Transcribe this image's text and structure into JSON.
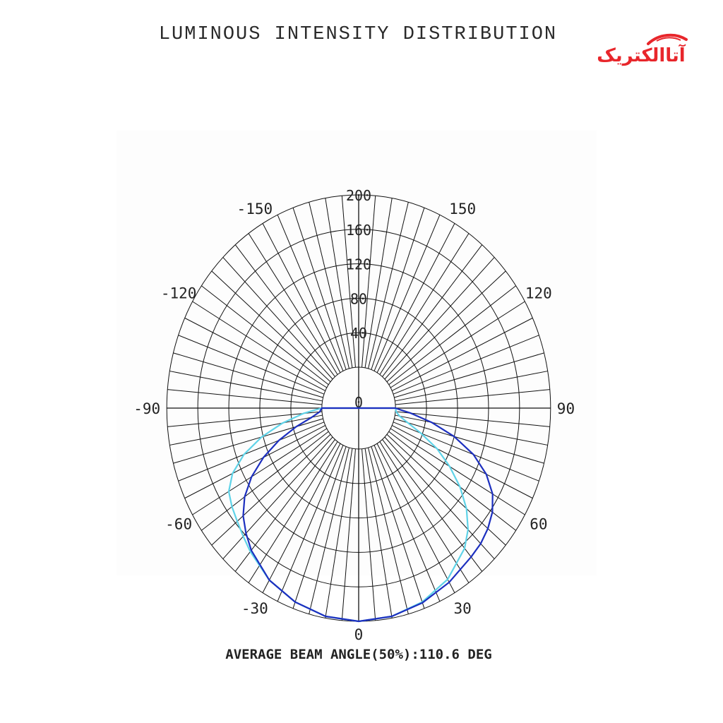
{
  "title": "LUMINOUS INTENSITY DISTRIBUTION",
  "logo": {
    "text": "آتاالکتریک",
    "color": "#e8262b"
  },
  "footer": "AVERAGE BEAM ANGLE(50%):110.6 DEG",
  "chart_data": {
    "type": "polar",
    "radial_ticks": [
      0,
      40,
      80,
      120,
      160,
      200
    ],
    "radial_tick_labels": [
      "0",
      "40",
      "80",
      "120",
      "160",
      "200"
    ],
    "angle_labels": [
      {
        "angle": -150,
        "text": "-150"
      },
      {
        "angle": 150,
        "text": "150"
      },
      {
        "angle": -120,
        "text": "-120"
      },
      {
        "angle": 120,
        "text": "120"
      },
      {
        "angle": -90,
        "text": "-90"
      },
      {
        "angle": 90,
        "text": "90"
      },
      {
        "angle": -60,
        "text": "-60"
      },
      {
        "angle": 60,
        "text": "60"
      },
      {
        "angle": -30,
        "text": "-30"
      },
      {
        "angle": 30,
        "text": "30"
      },
      {
        "angle": 0,
        "text": "0"
      }
    ],
    "rlim": [
      0,
      200
    ],
    "angle_step_deg": 5,
    "grid": true,
    "series": [
      {
        "color": "#5fd3e8",
        "points": [
          [
            0,
            200
          ],
          [
            10,
            198
          ],
          [
            20,
            192
          ],
          [
            30,
            182
          ],
          [
            40,
            165
          ],
          [
            45,
            152
          ],
          [
            50,
            134
          ],
          [
            55,
            112
          ],
          [
            60,
            88
          ],
          [
            65,
            64
          ],
          [
            70,
            38
          ],
          [
            75,
            18
          ],
          [
            80,
            6
          ],
          [
            85,
            1
          ],
          [
            90,
            0
          ],
          [
            -10,
            198
          ],
          [
            -20,
            192
          ],
          [
            -30,
            183
          ],
          [
            -40,
            170
          ],
          [
            -45,
            163
          ],
          [
            -50,
            157
          ],
          [
            -55,
            152
          ],
          [
            -60,
            146
          ],
          [
            -65,
            132
          ],
          [
            -70,
            110
          ],
          [
            -75,
            82
          ],
          [
            -80,
            52
          ],
          [
            -85,
            24
          ],
          [
            -88,
            8
          ],
          [
            -90,
            0
          ]
        ]
      },
      {
        "color": "#1c2fbf",
        "points": [
          [
            0,
            200
          ],
          [
            10,
            198
          ],
          [
            20,
            193
          ],
          [
            30,
            186
          ],
          [
            40,
            178
          ],
          [
            45,
            175
          ],
          [
            50,
            170
          ],
          [
            55,
            163
          ],
          [
            60,
            152
          ],
          [
            65,
            134
          ],
          [
            70,
            110
          ],
          [
            75,
            80
          ],
          [
            80,
            48
          ],
          [
            85,
            20
          ],
          [
            88,
            6
          ],
          [
            90,
            0
          ],
          [
            -10,
            198
          ],
          [
            -20,
            192
          ],
          [
            -30,
            183
          ],
          [
            -40,
            168
          ],
          [
            -45,
            158
          ],
          [
            -50,
            147
          ],
          [
            -55,
            132
          ],
          [
            -60,
            112
          ],
          [
            -65,
            88
          ],
          [
            -70,
            62
          ],
          [
            -75,
            36
          ],
          [
            -80,
            14
          ],
          [
            -85,
            3
          ],
          [
            -90,
            0
          ]
        ]
      }
    ]
  }
}
